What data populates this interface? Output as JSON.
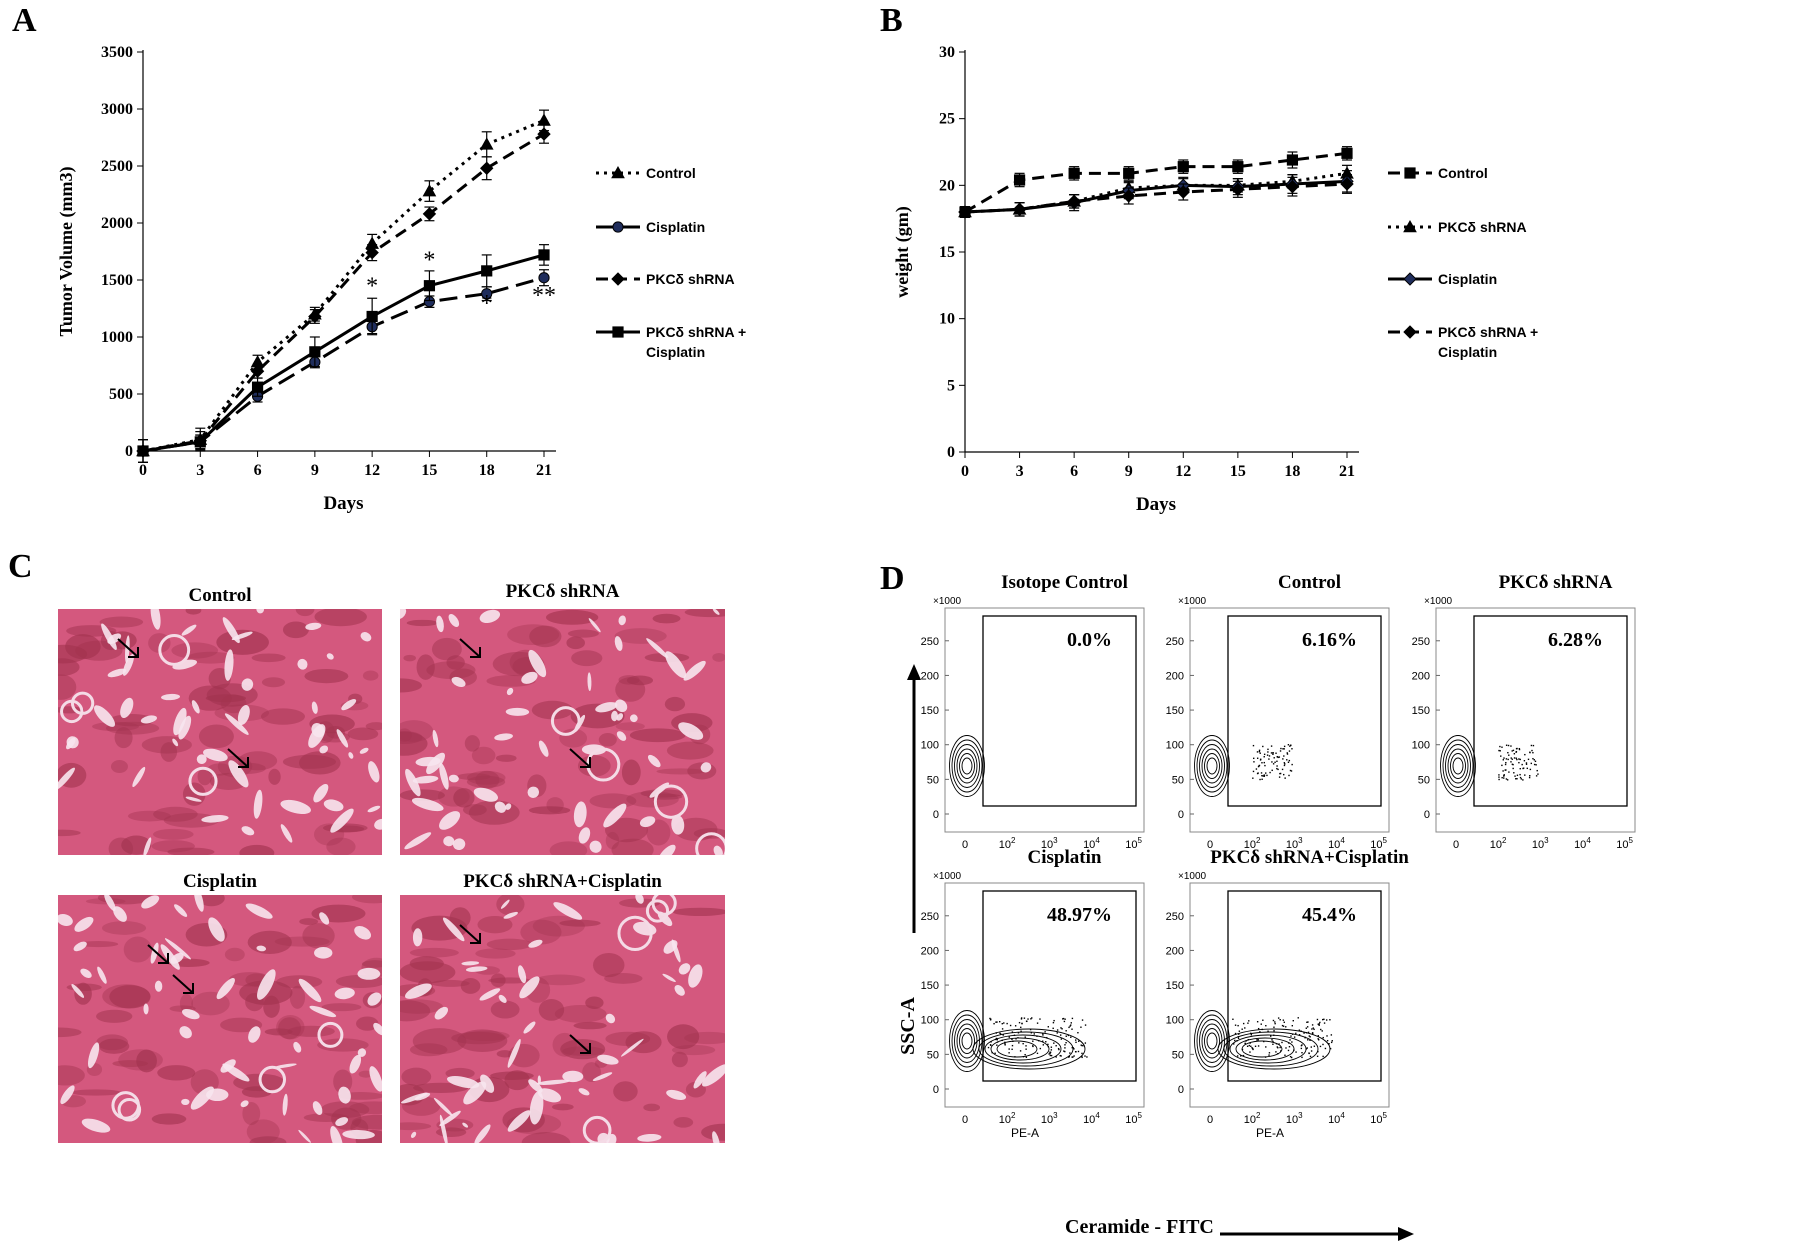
{
  "panel_letters": {
    "a": "A",
    "b": "B",
    "c": "C",
    "d": "D"
  },
  "chart_data": [
    {
      "type": "line",
      "title": "",
      "xlabel": "Days",
      "ylabel": "Tumor Volume (mm3)",
      "x": [
        0,
        3,
        6,
        9,
        12,
        15,
        18,
        21
      ],
      "xlim": [
        0,
        21
      ],
      "ylim": [
        0,
        3500
      ],
      "yticks": [
        0,
        500,
        1000,
        1500,
        2000,
        2500,
        3000,
        3500
      ],
      "legend_position": "right",
      "series": [
        {
          "name": "Control",
          "marker": "triangle",
          "dash": "dot",
          "values": [
            0,
            100,
            780,
            1200,
            1820,
            2280,
            2690,
            2900
          ],
          "err": [
            100,
            100,
            60,
            60,
            80,
            90,
            110,
            90
          ]
        },
        {
          "name": "Cisplatin",
          "marker": "circle",
          "dash": "longdash",
          "values": [
            0,
            80,
            480,
            780,
            1090,
            1310,
            1380,
            1520
          ],
          "err": [
            100,
            60,
            50,
            50,
            60,
            50,
            60,
            70
          ]
        },
        {
          "name": "PKCδ shRNA",
          "marker": "diamond",
          "dash": "dash",
          "values": [
            0,
            90,
            700,
            1180,
            1740,
            2080,
            2480,
            2780
          ],
          "err": [
            100,
            80,
            60,
            60,
            70,
            60,
            100,
            80
          ]
        },
        {
          "name": "PKCδ shRNA + Cisplatin",
          "name_lines": [
            "PKCδ shRNA +",
            "Cisplatin"
          ],
          "marker": "square",
          "dash": "solid",
          "values": [
            0,
            80,
            560,
            870,
            1180,
            1450,
            1580,
            1720
          ],
          "err": [
            100,
            60,
            80,
            130,
            160,
            130,
            140,
            90
          ]
        }
      ],
      "annotations": [
        {
          "text": "*",
          "x": 12,
          "y": 1380
        },
        {
          "text": "*",
          "x": 15,
          "y": 1610
        },
        {
          "text": "*",
          "x": 18,
          "y": 1230
        },
        {
          "text": "**",
          "x": 21,
          "y": 1300
        }
      ]
    },
    {
      "type": "line",
      "title": "",
      "xlabel": "Days",
      "ylabel": "weight (gm)",
      "x": [
        0,
        3,
        6,
        9,
        12,
        15,
        18,
        21
      ],
      "xlim": [
        0,
        21
      ],
      "ylim": [
        0,
        30
      ],
      "yticks": [
        0,
        5,
        10,
        15,
        20,
        25,
        30
      ],
      "legend_position": "right",
      "series": [
        {
          "name": "Control",
          "marker": "square",
          "dash": "dash",
          "values": [
            18,
            20.4,
            20.9,
            20.9,
            21.4,
            21.4,
            21.9,
            22.4
          ],
          "err": [
            0.3,
            0.5,
            0.5,
            0.5,
            0.5,
            0.5,
            0.6,
            0.5
          ]
        },
        {
          "name": "PKCδ shRNA",
          "marker": "triangle",
          "dash": "dot",
          "values": [
            18,
            18.2,
            18.8,
            19.8,
            20.0,
            20.0,
            20.3,
            20.9
          ],
          "err": [
            0.4,
            0.5,
            0.5,
            0.5,
            0.5,
            0.5,
            0.5,
            0.6
          ]
        },
        {
          "name": "Cisplatin",
          "marker": "diamond",
          "dash": "solid",
          "values": [
            18,
            18.2,
            18.7,
            19.6,
            20.0,
            19.9,
            20.1,
            20.3
          ],
          "err": [
            0.4,
            0.5,
            0.6,
            0.6,
            0.6,
            0.6,
            0.7,
            0.8
          ]
        },
        {
          "name": "PKCδ shRNA + Cisplatin",
          "name_lines": [
            "PKCδ shRNA +",
            "Cisplatin"
          ],
          "marker": "diamond",
          "dash": "dash",
          "values": [
            18,
            18.2,
            18.8,
            19.2,
            19.5,
            19.7,
            19.9,
            20.1
          ],
          "err": [
            0.4,
            0.5,
            0.5,
            0.6,
            0.6,
            0.6,
            0.7,
            0.7
          ]
        }
      ]
    }
  ],
  "histology": {
    "panels": [
      "Control",
      "PKCδ  shRNA",
      "Cisplatin",
      "PKCδ  shRNA+Cisplatin"
    ]
  },
  "flow": {
    "y_axis_title": "SSC-A",
    "x_axis_title": "Ceramide - FITC",
    "y_multiplier": "×1000",
    "y_ticks": [
      "0",
      "50",
      "100",
      "150",
      "200",
      "250"
    ],
    "x_ticks": [
      "0",
      "10",
      "10",
      "10",
      "10"
    ],
    "x_tick_exponents": [
      "",
      "2",
      "3",
      "4",
      "5"
    ],
    "x_channel": "PE-A",
    "plots": [
      {
        "title": "Isotope Control",
        "percent": "0.0%"
      },
      {
        "title": "Control",
        "percent": "6.16%"
      },
      {
        "title": "PKCδ  shRNA",
        "percent": "6.28%"
      },
      {
        "title": "Cisplatin",
        "percent": "48.97%"
      },
      {
        "title": "PKCδ  shRNA+Cisplatin",
        "percent": "45.4%"
      }
    ]
  },
  "colors": {
    "line": "#000000",
    "marker_blue": "#1f2d5c",
    "histology_bg": "#d4587e",
    "histology_dark": "#a2334f"
  }
}
